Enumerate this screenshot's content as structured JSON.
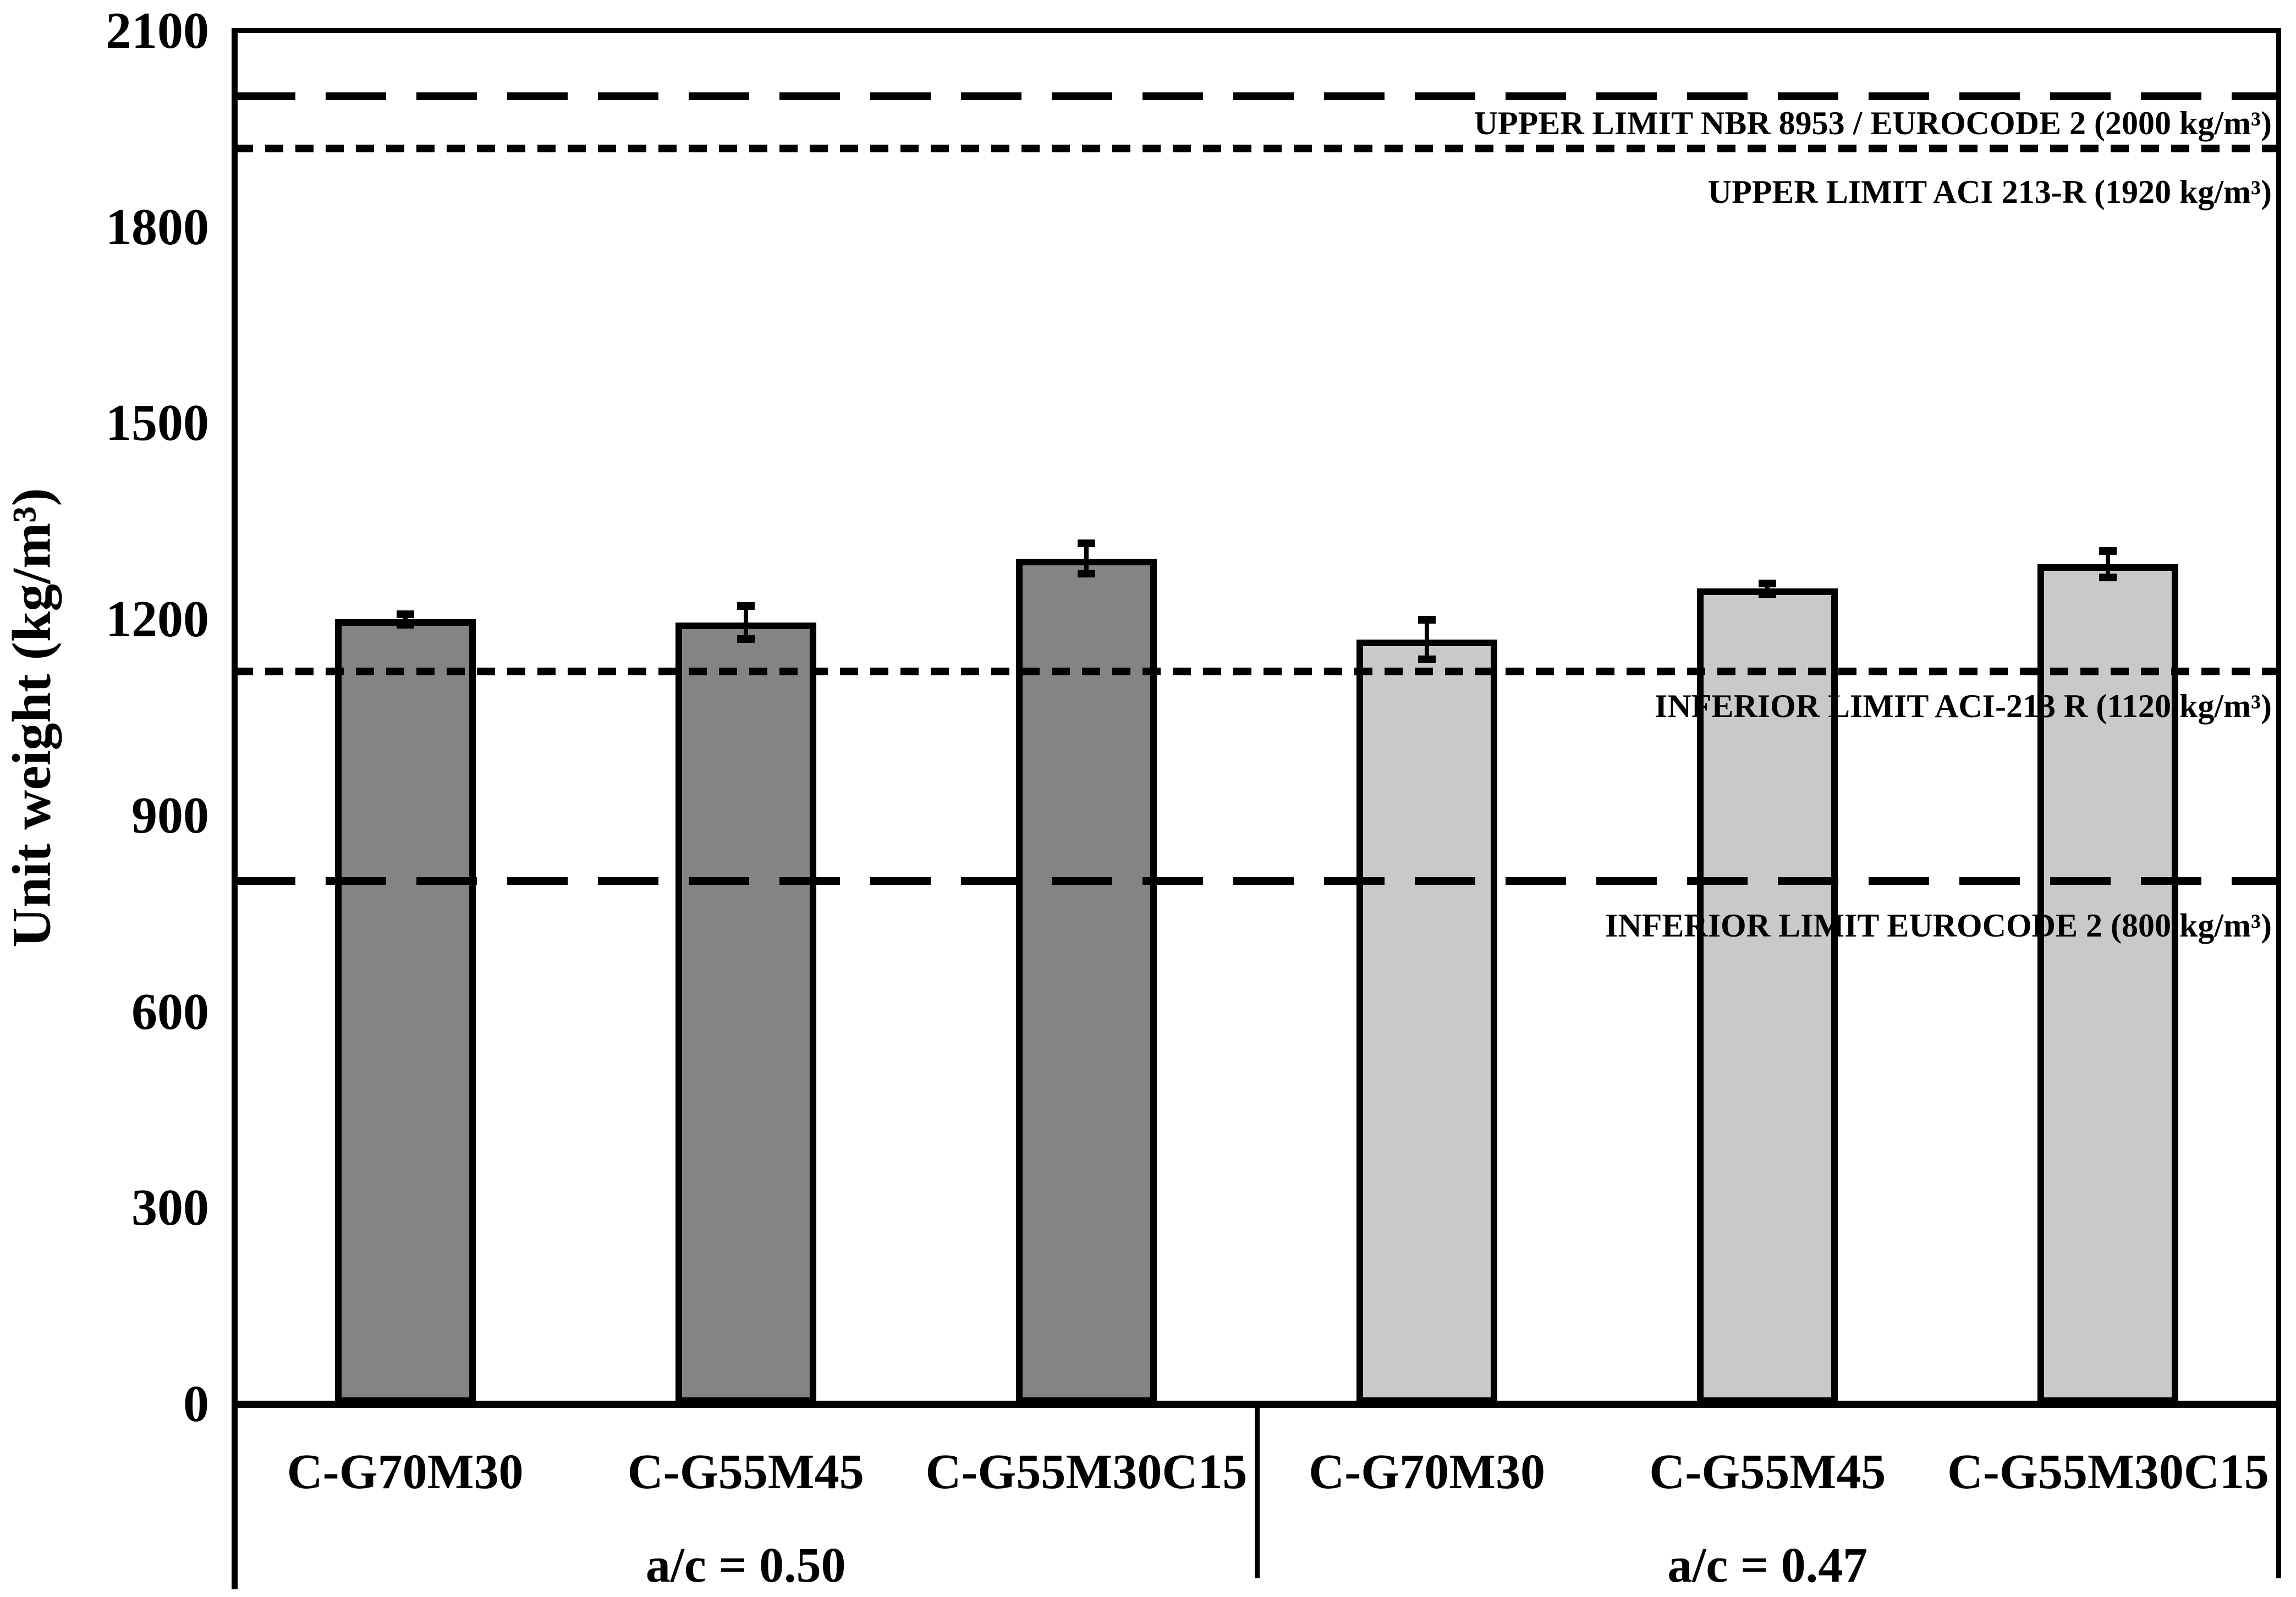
{
  "chart_data": {
    "type": "bar",
    "title": "",
    "ylabel": "Unit weight (kg/m³)",
    "xlabel": "",
    "ylim": [
      0,
      2100
    ],
    "yticks": [
      0,
      300,
      600,
      900,
      1200,
      1500,
      1800,
      2100
    ],
    "grid": false,
    "legend": false,
    "background_color": "#ffffff",
    "bar_outline_color": "#000000",
    "groups": [
      {
        "label": "a/c = 0.50",
        "bar_color": "#848484",
        "categories": [
          "C-G70M30",
          "C-G55M45",
          "C-G55M30C15"
        ],
        "values": [
          1200,
          1195,
          1293
        ],
        "errors": [
          8,
          25,
          23
        ]
      },
      {
        "label": "a/c = 0.47",
        "bar_color": "#c9c9c9",
        "categories": [
          "C-G70M30",
          "C-G55M45",
          "C-G55M30C15"
        ],
        "values": [
          1169,
          1247,
          1284
        ],
        "errors": [
          30,
          8,
          20
        ]
      }
    ],
    "limit_lines": [
      {
        "label": "UPPER LIMIT NBR 8953 / EUROCODE 2 (2000 kg/m³)",
        "value": 2000,
        "style": "long-dash"
      },
      {
        "label": "UPPER LIMIT ACI 213-R (1920 kg/m³)",
        "value": 1920,
        "style": "dot"
      },
      {
        "label": "INFERIOR LIMIT ACI-213 R (1120 kg/m³)",
        "value": 1120,
        "style": "dot"
      },
      {
        "label": "INFERIOR LIMIT EUROCODE 2 (800 kg/m³)",
        "value": 800,
        "style": "long-dash"
      }
    ]
  }
}
